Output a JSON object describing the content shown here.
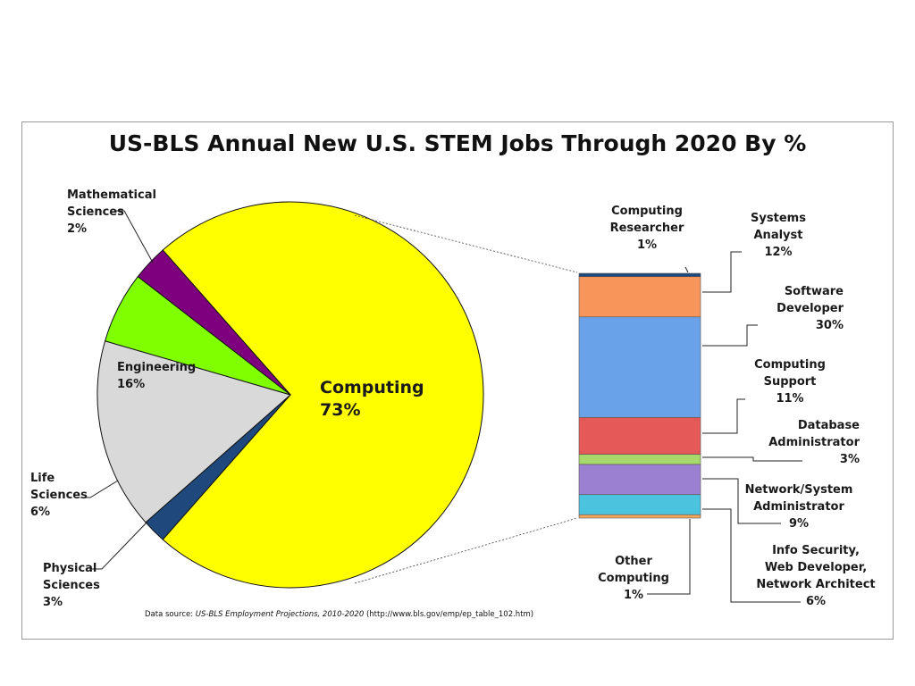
{
  "chart_data": [
    {
      "type": "pie",
      "title": "US-BLS Annual New U.S. STEM Jobs Through 2020 By %",
      "slices": [
        {
          "name": "Computing",
          "value": 73,
          "label": "73%",
          "color": "#ffff00"
        },
        {
          "name": "Mathematical Sciences",
          "value": 2,
          "label": "2%",
          "color": "#1f497d"
        },
        {
          "name": "Engineering",
          "value": 16,
          "label": "16%",
          "color": "#d9d9d9"
        },
        {
          "name": "Life Sciences",
          "value": 6,
          "label": "6%",
          "color": "#80ff00"
        },
        {
          "name": "Physical Sciences",
          "value": 3,
          "label": "3%",
          "color": "#7f007f"
        }
      ]
    },
    {
      "type": "bar",
      "stacked": true,
      "series": [
        {
          "name": "Computing Researcher",
          "value": 1,
          "label": "1%",
          "color": "#1f497d"
        },
        {
          "name": "Systems Analyst",
          "value": 12,
          "label": "12%",
          "color": "#f7955a"
        },
        {
          "name": "Software Developer",
          "value": 30,
          "label": "30%",
          "color": "#6aa2ea"
        },
        {
          "name": "Computing Support",
          "value": 11,
          "label": "11%",
          "color": "#e55a59"
        },
        {
          "name": "Database Administrator",
          "value": 3,
          "label": "3%",
          "color": "#a6d96a"
        },
        {
          "name": "Network/System Administrator",
          "value": 9,
          "label": "9%",
          "color": "#9b7fd0"
        },
        {
          "name": "Info Security, Web Developer, Network Architect",
          "value": 6,
          "label": "6%",
          "color": "#4bc3df"
        },
        {
          "name": "Other Computing",
          "value": 1,
          "label": "1%",
          "color": "#f2a65e"
        }
      ]
    }
  ],
  "labels": {
    "math": [
      "Mathematical",
      "Sciences",
      "2%"
    ],
    "engineering": [
      "Engineering",
      "16%"
    ],
    "life": [
      "Life",
      "Sciences",
      "6%"
    ],
    "physical": [
      "Physical",
      "Sciences",
      "3%"
    ],
    "computing": [
      "Computing",
      "73%"
    ],
    "researcher": [
      "Computing",
      "Researcher",
      "1%"
    ],
    "analyst": [
      "Systems",
      "Analyst",
      "12%"
    ],
    "software": [
      "Software",
      "Developer",
      "30%"
    ],
    "support": [
      "Computing",
      "Support",
      "11%"
    ],
    "database": [
      "Database",
      "Administrator",
      "3%"
    ],
    "network": [
      "Network/System",
      "Administrator",
      "9%"
    ],
    "infosec": [
      "Info Security,",
      "Web Developer,",
      "Network Architect",
      "6%"
    ],
    "other": [
      "Other",
      "Computing",
      "1%"
    ]
  },
  "source": {
    "prefix": "Data source: ",
    "italic": "US-BLS Employment Projections, 2010-2020",
    "suffix": " (http://www.bls.gov/emp/ep_table_102.htm)"
  }
}
